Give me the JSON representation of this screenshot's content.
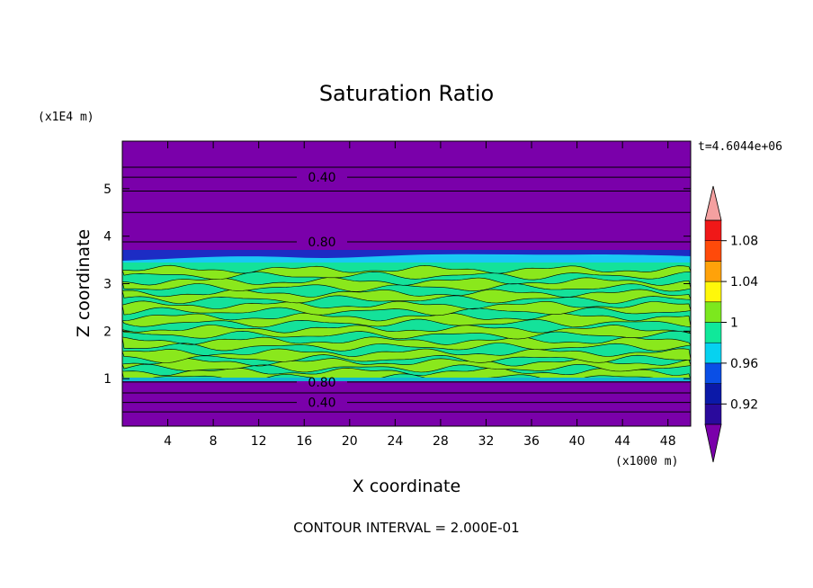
{
  "chart_data": {
    "type": "heatmap",
    "title": "Saturation Ratio",
    "xlabel": "X coordinate",
    "ylabel": "Z coordinate",
    "x_unit": "(x1000 m)",
    "y_unit": "(x1E4 m)",
    "time_label": "t=4.6044e+06",
    "footer": "CONTOUR INTERVAL = 2.000E-01",
    "xlim": [
      0,
      50
    ],
    "ylim": [
      0,
      6
    ],
    "xticks": [
      4,
      8,
      12,
      16,
      20,
      24,
      28,
      32,
      36,
      40,
      44,
      48
    ],
    "yticks": [
      1,
      2,
      3,
      4,
      5
    ],
    "colorbar": {
      "boundaries": [
        0.9,
        0.92,
        0.94,
        0.96,
        0.98,
        1.0,
        1.02,
        1.04,
        1.06,
        1.08,
        1.1
      ],
      "tick_labels": [
        "0.92",
        "0.96",
        "1",
        "1.04",
        "1.08"
      ],
      "tick_values": [
        0.92,
        0.96,
        1.0,
        1.04,
        1.08
      ],
      "colors": [
        "#2a0a9c",
        "#0b19a8",
        "#0a4fe6",
        "#06d2f0",
        "#10e89a",
        "#7ce81e",
        "#fff80a",
        "#ffa20a",
        "#ff4a0a",
        "#f01818"
      ],
      "under_color": "#7a00aa",
      "over_color": "#f4a0a0"
    },
    "contour_levels": [
      {
        "label": "0.40",
        "z": 5.24
      },
      {
        "label": "0.80",
        "z": 3.88
      },
      {
        "label": "0.80",
        "z": 0.93
      },
      {
        "label": "0.40",
        "z": 0.5
      }
    ],
    "layers": [
      {
        "z_range": [
          0,
          1.0
        ],
        "value": "< 0.9"
      },
      {
        "z_range": [
          1.0,
          3.5
        ],
        "value": "0.98 – 1.02"
      },
      {
        "z_range": [
          3.5,
          3.6
        ],
        "value": "0.94 – 0.98"
      },
      {
        "z_range": [
          3.6,
          6.0
        ],
        "value": "< 0.9"
      }
    ]
  }
}
